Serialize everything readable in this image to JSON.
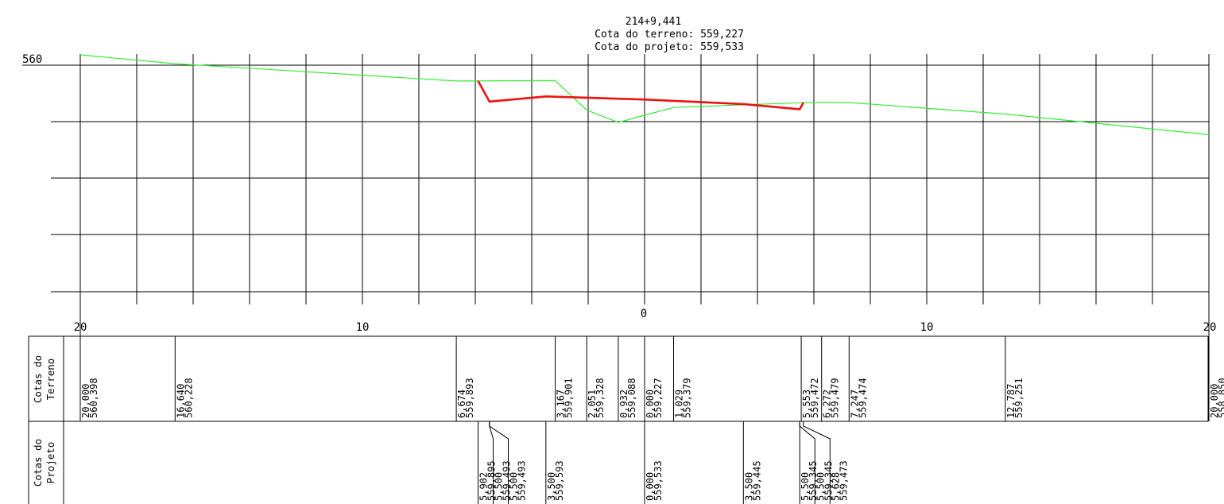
{
  "header": {
    "station": "214+9,441",
    "terrain_label": "Cota do terreno: 559,227",
    "project_label": "Cota do projeto: 559,533"
  },
  "colors": {
    "terrain": "#33ee33",
    "project": "#ee1111",
    "grid": "#000000"
  },
  "chart_data": {
    "type": "line",
    "xlim": [
      -20,
      20
    ],
    "ylim": [
      555.8,
      560.2
    ],
    "y_tick_label": "560",
    "x_ticks": [
      "20",
      "10",
      "0",
      "10",
      "20"
    ],
    "series": [
      {
        "key": "terrain",
        "points": [
          [
            -20,
            560.4
          ],
          [
            -16.64,
            560.23
          ],
          [
            -6.674,
            559.893
          ],
          [
            -3.167,
            559.901
          ],
          [
            -2.051,
            559.328
          ],
          [
            -0.932,
            559.088
          ],
          [
            0,
            559.227
          ],
          [
            1.029,
            559.379
          ],
          [
            5.553,
            559.472
          ],
          [
            6.272,
            559.479
          ],
          [
            7.247,
            559.474
          ],
          [
            12.787,
            559.251
          ],
          [
            20,
            558.85
          ]
        ]
      },
      {
        "key": "project",
        "points": [
          [
            -5.902,
            559.895
          ],
          [
            -5.5,
            559.493
          ],
          [
            -3.5,
            559.593
          ],
          [
            0,
            559.533
          ],
          [
            3.5,
            559.445
          ],
          [
            5.5,
            559.345
          ],
          [
            5.628,
            559.473
          ]
        ]
      }
    ]
  },
  "table": {
    "terrain_title": [
      "Cotas do",
      "Terreno"
    ],
    "project_title": [
      "Cotas do",
      "Projeto"
    ],
    "terrain_entries": [
      {
        "x": -20,
        "offset": "20,000",
        "elev": "560,398"
      },
      {
        "x": -16.64,
        "offset": "16,640",
        "elev": "560,228"
      },
      {
        "x": -6.674,
        "offset": "6,674",
        "elev": "559,893"
      },
      {
        "x": -3.167,
        "offset": "3,167",
        "elev": "559,901"
      },
      {
        "x": -2.051,
        "offset": "2,051",
        "elev": "559,328"
      },
      {
        "x": -0.932,
        "offset": "0,932",
        "elev": "559,088"
      },
      {
        "x": 0,
        "offset": "0,000",
        "elev": "559,227"
      },
      {
        "x": 1.029,
        "offset": "1,029",
        "elev": "559,379"
      },
      {
        "x": 5.553,
        "offset": "5,553",
        "elev": "559,472"
      },
      {
        "x": 6.272,
        "offset": "6,272",
        "elev": "559,479"
      },
      {
        "x": 7.247,
        "offset": "7,247",
        "elev": "559,474"
      },
      {
        "x": 12.787,
        "offset": "12,787",
        "elev": "559,251"
      },
      {
        "x": 20,
        "offset": "20,000",
        "elev": "558,850"
      }
    ],
    "project_entries": [
      {
        "x": -5.902,
        "offset": "5,902",
        "elev": "559,895"
      },
      {
        "x": -5.5,
        "offset": "5,500",
        "elev": "559,493"
      },
      {
        "x": -5.5,
        "offset": "5,500",
        "elev": "559,493"
      },
      {
        "x": -3.5,
        "offset": "3,500",
        "elev": "559,593"
      },
      {
        "x": 0,
        "offset": "0,000",
        "elev": "559,533"
      },
      {
        "x": 3.5,
        "offset": "3,500",
        "elev": "559,445"
      },
      {
        "x": 5.5,
        "offset": "5,500",
        "elev": "559,345"
      },
      {
        "x": 5.5,
        "offset": "5,500",
        "elev": "559,345"
      },
      {
        "x": 5.628,
        "offset": "5,628",
        "elev": "559,473"
      }
    ]
  }
}
